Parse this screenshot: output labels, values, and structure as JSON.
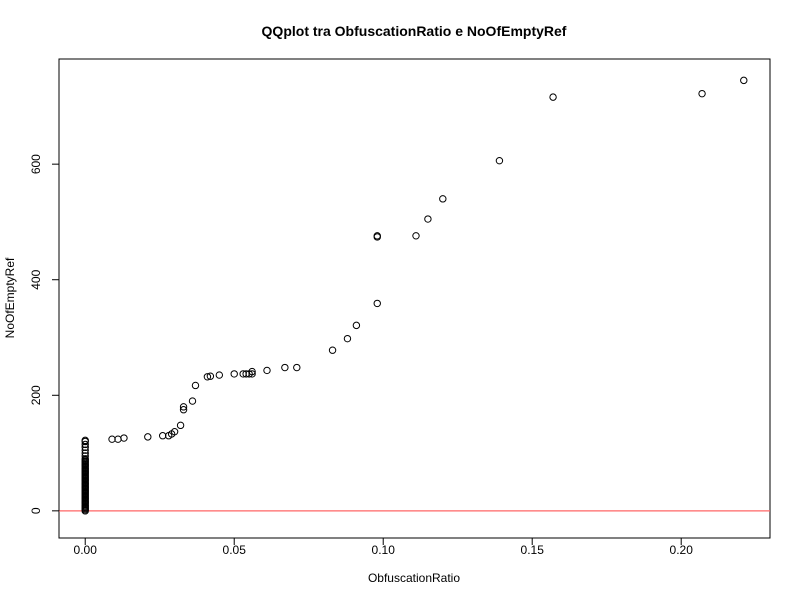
{
  "chart_data": {
    "type": "scatter",
    "title": "QQplot tra ObfuscationRatio e NoOfEmptyRef",
    "xlabel": "ObfuscationRatio",
    "ylabel": "NoOfEmptyRef",
    "xlim": [
      -0.0088,
      0.2298
    ],
    "ylim": [
      -47,
      782
    ],
    "xticks": [
      0.0,
      0.05,
      0.1,
      0.15,
      0.2
    ],
    "xtick_labels": [
      "0.00",
      "0.05",
      "0.10",
      "0.15",
      "0.20"
    ],
    "yticks": [
      0,
      200,
      400,
      600
    ],
    "ytick_labels": [
      "0",
      "200",
      "400",
      "600"
    ],
    "grid": false,
    "reference_line": {
      "y": 0,
      "color": "#ff6666"
    },
    "point_color": "#000000",
    "points": [
      [
        0,
        0
      ],
      [
        0,
        2
      ],
      [
        0,
        4
      ],
      [
        0,
        6
      ],
      [
        0,
        8
      ],
      [
        0,
        10
      ],
      [
        0,
        12
      ],
      [
        0,
        14
      ],
      [
        0,
        16
      ],
      [
        0,
        18
      ],
      [
        0,
        20
      ],
      [
        0,
        22
      ],
      [
        0,
        24
      ],
      [
        0,
        26
      ],
      [
        0,
        28
      ],
      [
        0,
        30
      ],
      [
        0,
        32
      ],
      [
        0,
        34
      ],
      [
        0,
        36
      ],
      [
        0,
        38
      ],
      [
        0,
        40
      ],
      [
        0,
        42
      ],
      [
        0,
        44
      ],
      [
        0,
        46
      ],
      [
        0,
        48
      ],
      [
        0,
        50
      ],
      [
        0,
        52
      ],
      [
        0,
        54
      ],
      [
        0,
        56
      ],
      [
        0,
        58
      ],
      [
        0,
        60
      ],
      [
        0,
        62
      ],
      [
        0,
        64
      ],
      [
        0,
        66
      ],
      [
        0,
        68
      ],
      [
        0,
        70
      ],
      [
        0,
        72
      ],
      [
        0,
        74
      ],
      [
        0,
        76
      ],
      [
        0,
        78
      ],
      [
        0,
        80
      ],
      [
        0,
        82
      ],
      [
        0,
        84
      ],
      [
        0,
        86
      ],
      [
        0,
        88
      ],
      [
        0,
        90
      ],
      [
        0,
        95
      ],
      [
        0,
        100
      ],
      [
        0,
        105
      ],
      [
        0,
        110
      ],
      [
        0,
        115
      ],
      [
        0,
        120
      ],
      [
        0,
        122
      ],
      [
        0.009,
        124
      ],
      [
        0.011,
        124
      ],
      [
        0.013,
        126
      ],
      [
        0.021,
        128
      ],
      [
        0.026,
        130
      ],
      [
        0.028,
        130
      ],
      [
        0.029,
        133
      ],
      [
        0.03,
        137
      ],
      [
        0.032,
        148
      ],
      [
        0.033,
        175
      ],
      [
        0.033,
        180
      ],
      [
        0.036,
        190
      ],
      [
        0.037,
        217
      ],
      [
        0.041,
        232
      ],
      [
        0.042,
        233
      ],
      [
        0.045,
        235
      ],
      [
        0.05,
        237
      ],
      [
        0.053,
        237
      ],
      [
        0.054,
        237
      ],
      [
        0.055,
        237
      ],
      [
        0.056,
        237
      ],
      [
        0.056,
        241
      ],
      [
        0.061,
        243
      ],
      [
        0.067,
        248
      ],
      [
        0.071,
        248
      ],
      [
        0.083,
        278
      ],
      [
        0.088,
        298
      ],
      [
        0.091,
        321
      ],
      [
        0.098,
        359
      ],
      [
        0.098,
        474
      ],
      [
        0.098,
        476
      ],
      [
        0.111,
        476
      ],
      [
        0.115,
        505
      ],
      [
        0.12,
        540
      ],
      [
        0.139,
        606
      ],
      [
        0.157,
        716
      ],
      [
        0.207,
        722
      ],
      [
        0.221,
        745
      ]
    ]
  }
}
